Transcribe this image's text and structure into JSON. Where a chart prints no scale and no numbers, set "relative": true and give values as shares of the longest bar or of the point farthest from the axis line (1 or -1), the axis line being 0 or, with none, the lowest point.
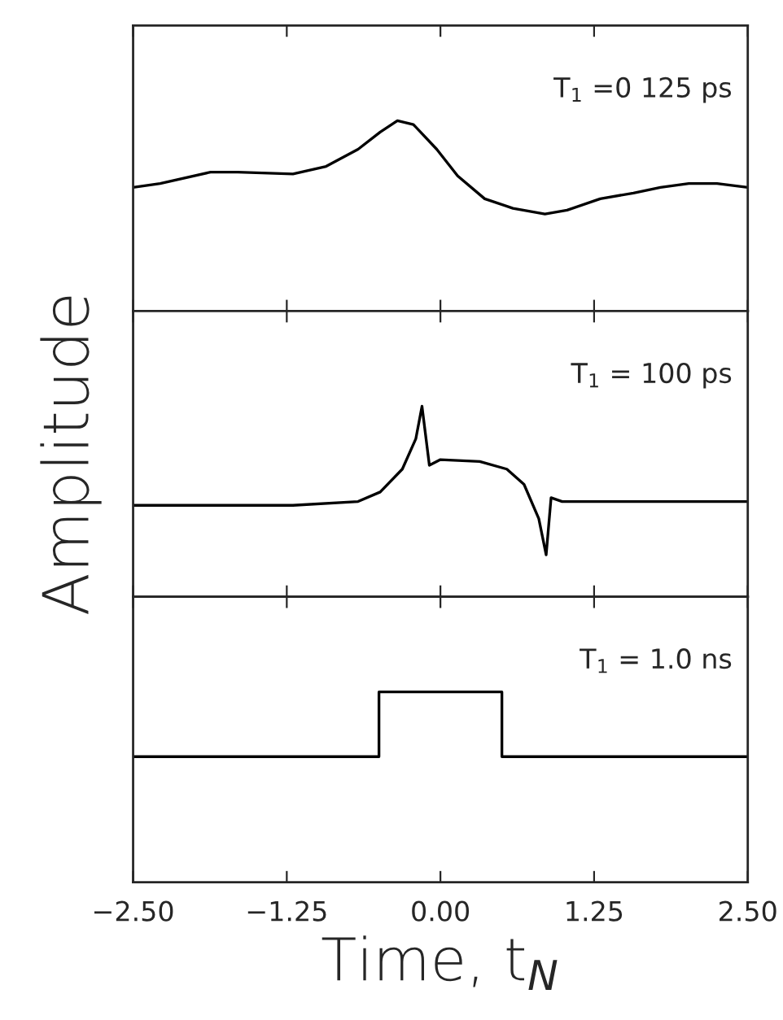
{
  "chart_data": [
    {
      "type": "line",
      "relative": true,
      "tick_labels": false,
      "annotations": [
        "T$_{1}$ =0 125 ps"
      ],
      "xlim": [
        -2.5,
        2.5
      ],
      "xticks": [
        -2.5,
        -1.25,
        0,
        1.25,
        2.5
      ],
      "series": [
        {
          "color": "#000000",
          "x": [
            -2.5,
            -2.28,
            -1.87,
            -1.65,
            -1.2,
            -0.93,
            -0.67,
            -0.49,
            -0.35,
            -0.22,
            -0.03,
            0.14,
            0.36,
            0.59,
            0.85,
            1.03,
            1.3,
            1.57,
            1.79,
            2.02,
            2.25,
            2.5
          ],
          "values": [
            0.65,
            0.67,
            0.73,
            0.73,
            0.72,
            0.76,
            0.85,
            0.94,
            1.0,
            0.98,
            0.85,
            0.71,
            0.59,
            0.54,
            0.51,
            0.53,
            0.59,
            0.62,
            0.65,
            0.67,
            0.67,
            0.65
          ]
        }
      ]
    },
    {
      "type": "line",
      "relative": true,
      "tick_labels": false,
      "ylabel": "Amplitude",
      "annotations": [
        "T$_{1}$ = 100 ps"
      ],
      "xlim": [
        -2.5,
        2.5
      ],
      "xticks": [
        -2.5,
        -1.25,
        0,
        1.25,
        2.5
      ],
      "series": [
        {
          "color": "#000000",
          "x": [
            -2.5,
            -1.2,
            -0.67,
            -0.49,
            -0.31,
            -0.2,
            -0.15,
            -0.09,
            0.0,
            0.32,
            0.54,
            0.68,
            0.8,
            0.86,
            0.9,
            0.99,
            2.5
          ],
          "values": [
            0.48,
            0.48,
            0.5,
            0.55,
            0.67,
            0.83,
            1.0,
            0.69,
            0.72,
            0.71,
            0.67,
            0.59,
            0.41,
            0.22,
            0.52,
            0.5,
            0.5
          ]
        }
      ]
    },
    {
      "type": "line",
      "relative": true,
      "tick_labels": "x",
      "xlabel": "Time, t$_{N}$",
      "annotations": [
        "T$_{1}$ = 1.0 ns"
      ],
      "xlim": [
        -2.5,
        2.5
      ],
      "xticks": [
        {
          "value": -2.5,
          "label": "−2.50"
        },
        {
          "value": -1.25,
          "label": "−1.25"
        },
        {
          "value": 0,
          "label": "0.00"
        },
        {
          "value": 1.25,
          "label": "1.25"
        },
        {
          "value": 2.5,
          "label": "2.50"
        }
      ],
      "series": [
        {
          "color": "#000000",
          "x": [
            -2.5,
            -0.5,
            -0.5,
            0.5,
            0.5,
            2.5
          ],
          "values": [
            0.66,
            0.66,
            1,
            1,
            0.66,
            0.66
          ]
        }
      ]
    }
  ]
}
